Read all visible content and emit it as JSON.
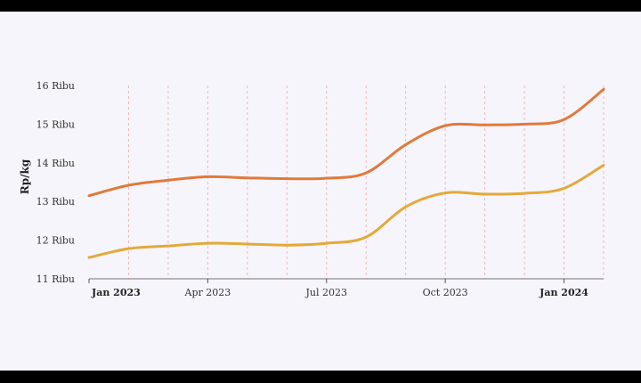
{
  "chart_data": {
    "type": "line",
    "title": "",
    "xlabel": "",
    "ylabel": "Rp/kg",
    "ylim": [
      11,
      16
    ],
    "yticks": [
      "11 Ribu",
      "12 Ribu",
      "13 Ribu",
      "14 Ribu",
      "15 Ribu",
      "16 Ribu"
    ],
    "ytick_values": [
      11,
      12,
      13,
      14,
      15,
      16
    ],
    "x": [
      "2023-01",
      "2023-02",
      "2023-03",
      "2023-04",
      "2023-05",
      "2023-06",
      "2023-07",
      "2023-08",
      "2023-09",
      "2023-10",
      "2023-11",
      "2023-12",
      "2024-01",
      "2024-02"
    ],
    "xticks": [
      {
        "label": "Jan 2023",
        "index": 0,
        "bold": true
      },
      {
        "label": "Apr 2023",
        "index": 3,
        "bold": false
      },
      {
        "label": "Jul 2023",
        "index": 6,
        "bold": false
      },
      {
        "label": "Oct 2023",
        "index": 9,
        "bold": false
      },
      {
        "label": "Jan 2024",
        "index": 12,
        "bold": true
      }
    ],
    "grid": "vertical-dashed",
    "legend": "none",
    "series": [
      {
        "color": "#e07a3c",
        "values": [
          13.15,
          13.42,
          13.55,
          13.64,
          13.61,
          13.59,
          13.6,
          13.74,
          14.47,
          14.96,
          14.98,
          15.0,
          15.12,
          15.9
        ]
      },
      {
        "color": "#e3a93a",
        "values": [
          11.55,
          11.78,
          11.85,
          11.92,
          11.9,
          11.87,
          11.92,
          12.08,
          12.86,
          13.22,
          13.19,
          13.21,
          13.34,
          13.94
        ]
      }
    ]
  }
}
